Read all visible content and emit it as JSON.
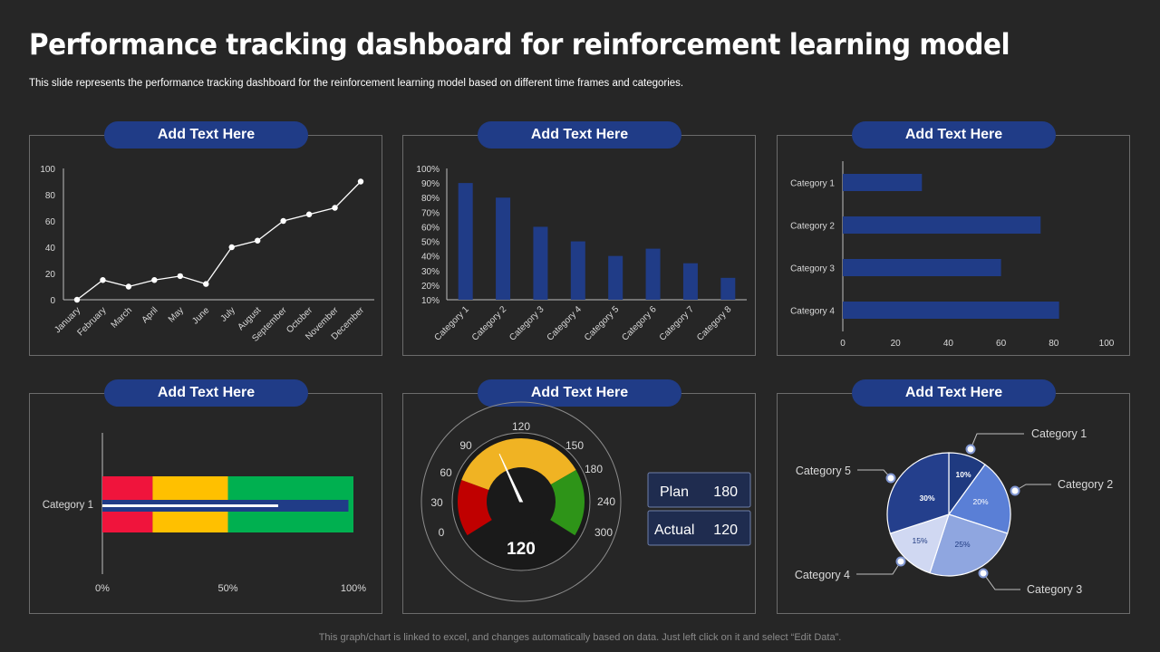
{
  "header": {
    "title": "Performance tracking dashboard for reinforcement learning model",
    "subtitle": "This slide represents the performance tracking dashboard for the reinforcement learning model based on different time frames and categories."
  },
  "panels": [
    {
      "label": "Add Text Here"
    },
    {
      "label": "Add Text Here"
    },
    {
      "label": "Add Text Here"
    },
    {
      "label": "Add Text Here"
    },
    {
      "label": "Add Text Here"
    },
    {
      "label": "Add Text Here"
    }
  ],
  "footer": "This graph/chart is linked to excel,  and changes automatically based on data. Just left click on it and select “Edit Data”.",
  "colors": {
    "background": "#262626",
    "accent_blue": "#203c87",
    "bar_blue": "#203c87",
    "red": "#f0143c",
    "yellow": "#ffc000",
    "green": "#00b050"
  },
  "chart_data": [
    {
      "type": "line",
      "categories": [
        "January",
        "February",
        "March",
        "April",
        "May",
        "June",
        "July",
        "August",
        "September",
        "October",
        "November",
        "December"
      ],
      "values": [
        0,
        15,
        10,
        15,
        18,
        12,
        40,
        45,
        60,
        65,
        70,
        90
      ],
      "yticks": [
        0,
        20,
        40,
        60,
        80,
        100
      ],
      "ylim": [
        0,
        100
      ]
    },
    {
      "type": "bar",
      "categories": [
        "Category 1",
        "Category 2",
        "Category 3",
        "Category 4",
        "Category 5",
        "Category 6",
        "Category 7",
        "Category 8"
      ],
      "values": [
        90,
        80,
        60,
        50,
        40,
        45,
        35,
        25
      ],
      "yticks": [
        "10%",
        "20%",
        "30%",
        "40%",
        "50%",
        "60%",
        "70%",
        "80%",
        "90%",
        "100%"
      ],
      "ylim": [
        10,
        100
      ]
    },
    {
      "type": "bar",
      "orientation": "horizontal",
      "categories": [
        "Category 1",
        "Category 2",
        "Category 3",
        "Category 4"
      ],
      "values": [
        30,
        75,
        60,
        82
      ],
      "xticks": [
        0,
        20,
        40,
        60,
        80,
        100
      ],
      "xlim": [
        0,
        100
      ]
    },
    {
      "type": "bar",
      "variant": "bullet",
      "category": "Category 1",
      "bands": [
        {
          "to": 20,
          "color": "#f0143c"
        },
        {
          "to": 50,
          "color": "#ffc000"
        },
        {
          "to": 100,
          "color": "#00b050"
        }
      ],
      "value": 98,
      "target": 70,
      "xticks": [
        "0%",
        "50%",
        "100%"
      ]
    },
    {
      "type": "gauge",
      "min": 0,
      "max": 300,
      "ticks": [
        0,
        30,
        60,
        90,
        120,
        150,
        180,
        240,
        300
      ],
      "value": 120,
      "value_label": "120",
      "plan_label": "Plan",
      "plan_value": "180",
      "actual_label": "Actual",
      "actual_value": "120"
    },
    {
      "type": "pie",
      "slices": [
        {
          "label": "Category 1",
          "value": 10,
          "pct": "10%",
          "color": "#1f3a80"
        },
        {
          "label": "Category 2",
          "value": 20,
          "pct": "20%",
          "color": "#5a7fd6"
        },
        {
          "label": "Category 3",
          "value": 25,
          "pct": "25%",
          "color": "#8fa6e0"
        },
        {
          "label": "Category 4",
          "value": 15,
          "pct": "15%",
          "color": "#d0d8f2"
        },
        {
          "label": "Category 5",
          "value": 30,
          "pct": "30%",
          "color": "#243f8c"
        }
      ]
    }
  ]
}
